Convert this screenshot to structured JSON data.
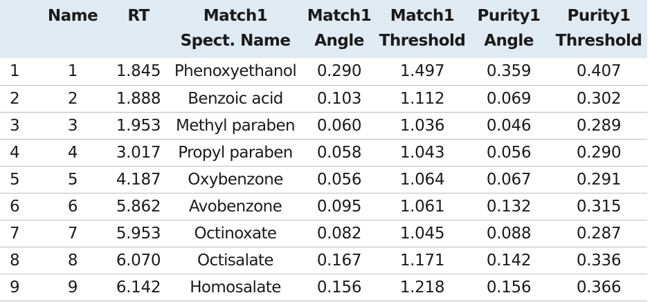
{
  "table": {
    "headers": [
      {
        "line1": "",
        "line2": ""
      },
      {
        "line1": "Name",
        "line2": ""
      },
      {
        "line1": "RT",
        "line2": ""
      },
      {
        "line1": "Match1",
        "line2": "Spect. Name"
      },
      {
        "line1": "Match1",
        "line2": "Angle"
      },
      {
        "line1": "Match1",
        "line2": "Threshold"
      },
      {
        "line1": "Purity1",
        "line2": "Angle"
      },
      {
        "line1": "Purity1",
        "line2": "Threshold"
      }
    ],
    "rows": [
      [
        "1",
        "1",
        "1.845",
        "Phenoxyethanol",
        "0.290",
        "1.497",
        "0.359",
        "0.407"
      ],
      [
        "2",
        "2",
        "1.888",
        "Benzoic acid",
        "0.103",
        "1.112",
        "0.069",
        "0.302"
      ],
      [
        "3",
        "3",
        "1.953",
        "Methyl paraben",
        "0.060",
        "1.036",
        "0.046",
        "0.289"
      ],
      [
        "4",
        "4",
        "3.017",
        "Propyl paraben",
        "0.058",
        "1.043",
        "0.056",
        "0.290"
      ],
      [
        "5",
        "5",
        "4.187",
        "Oxybenzone",
        "0.056",
        "1.064",
        "0.067",
        "0.291"
      ],
      [
        "6",
        "6",
        "5.862",
        "Avobenzone",
        "0.095",
        "1.061",
        "0.132",
        "0.315"
      ],
      [
        "7",
        "7",
        "5.953",
        "Octinoxate",
        "0.082",
        "1.045",
        "0.088",
        "0.287"
      ],
      [
        "8",
        "8",
        "6.070",
        "Octisalate",
        "0.167",
        "1.171",
        "0.142",
        "0.336"
      ],
      [
        "9",
        "9",
        "6.142",
        "Homosalate",
        "0.156",
        "1.218",
        "0.156",
        "0.366"
      ]
    ]
  }
}
